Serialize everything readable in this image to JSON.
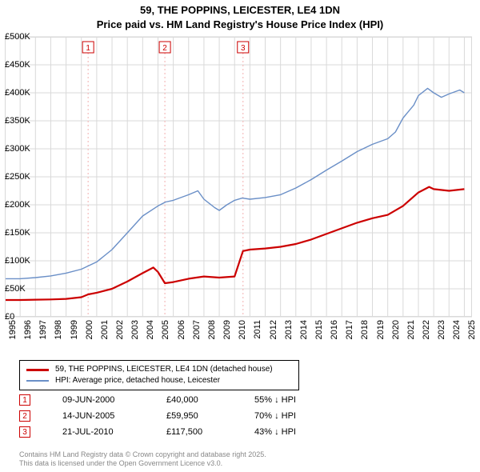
{
  "title": {
    "line1": "59, THE POPPINS, LEICESTER, LE4 1DN",
    "line2": "Price paid vs. HM Land Registry's House Price Index (HPI)"
  },
  "chart": {
    "type": "line",
    "background_color": "#ffffff",
    "grid_color": "#d9d9d9",
    "axis_color": "#000000",
    "x_years": [
      1995,
      1996,
      1997,
      1998,
      1999,
      2000,
      2001,
      2002,
      2003,
      2004,
      2005,
      2006,
      2007,
      2008,
      2009,
      2010,
      2011,
      2012,
      2013,
      2014,
      2015,
      2016,
      2017,
      2018,
      2019,
      2020,
      2021,
      2022,
      2023,
      2024,
      2025
    ],
    "x_domain": [
      1995,
      2025.5
    ],
    "y_domain": [
      0,
      500000
    ],
    "y_ticks": [
      0,
      50000,
      100000,
      150000,
      200000,
      250000,
      300000,
      350000,
      400000,
      450000,
      500000
    ],
    "y_tick_labels": [
      "£0",
      "£50K",
      "£100K",
      "£150K",
      "£200K",
      "£250K",
      "£300K",
      "£350K",
      "£400K",
      "£450K",
      "£500K"
    ],
    "y_label_fontsize": 11,
    "x_label_fontsize": 11,
    "series": [
      {
        "name": "HPI: Average price, detached house, Leicester",
        "color": "#6a8fc7",
        "line_width": 1.4,
        "points": [
          [
            1995,
            68000
          ],
          [
            1996,
            68000
          ],
          [
            1997,
            70000
          ],
          [
            1998,
            73000
          ],
          [
            1999,
            78000
          ],
          [
            2000,
            85000
          ],
          [
            2001,
            98000
          ],
          [
            2002,
            120000
          ],
          [
            2003,
            150000
          ],
          [
            2004,
            180000
          ],
          [
            2005,
            198000
          ],
          [
            2005.5,
            205000
          ],
          [
            2006,
            208000
          ],
          [
            2007,
            218000
          ],
          [
            2007.6,
            225000
          ],
          [
            2008,
            210000
          ],
          [
            2008.7,
            195000
          ],
          [
            2009,
            190000
          ],
          [
            2009.5,
            200000
          ],
          [
            2010,
            208000
          ],
          [
            2010.5,
            212000
          ],
          [
            2011,
            210000
          ],
          [
            2012,
            213000
          ],
          [
            2013,
            218000
          ],
          [
            2014,
            230000
          ],
          [
            2015,
            245000
          ],
          [
            2016,
            262000
          ],
          [
            2017,
            278000
          ],
          [
            2018,
            295000
          ],
          [
            2019,
            308000
          ],
          [
            2020,
            318000
          ],
          [
            2020.5,
            330000
          ],
          [
            2021,
            355000
          ],
          [
            2021.7,
            378000
          ],
          [
            2022,
            395000
          ],
          [
            2022.6,
            408000
          ],
          [
            2023,
            400000
          ],
          [
            2023.5,
            392000
          ],
          [
            2024,
            398000
          ],
          [
            2024.7,
            405000
          ],
          [
            2025,
            400000
          ]
        ]
      },
      {
        "name": "59, THE POPPINS, LEICESTER, LE4 1DN (detached house)",
        "color": "#cc0000",
        "line_width": 2.2,
        "points": [
          [
            1995,
            30000
          ],
          [
            1996,
            30000
          ],
          [
            1997,
            30500
          ],
          [
            1998,
            31000
          ],
          [
            1999,
            32000
          ],
          [
            2000,
            35000
          ],
          [
            2000.44,
            40000
          ],
          [
            2001,
            43000
          ],
          [
            2002,
            50000
          ],
          [
            2003,
            63000
          ],
          [
            2004,
            78000
          ],
          [
            2004.7,
            88000
          ],
          [
            2005,
            80000
          ],
          [
            2005.45,
            59950
          ],
          [
            2006,
            62000
          ],
          [
            2007,
            68000
          ],
          [
            2008,
            72000
          ],
          [
            2009,
            70000
          ],
          [
            2010,
            72000
          ],
          [
            2010.55,
            117500
          ],
          [
            2011,
            120000
          ],
          [
            2012,
            122000
          ],
          [
            2013,
            125000
          ],
          [
            2014,
            130000
          ],
          [
            2015,
            138000
          ],
          [
            2016,
            148000
          ],
          [
            2017,
            158000
          ],
          [
            2018,
            168000
          ],
          [
            2019,
            176000
          ],
          [
            2020,
            182000
          ],
          [
            2021,
            198000
          ],
          [
            2022,
            222000
          ],
          [
            2022.7,
            232000
          ],
          [
            2023,
            228000
          ],
          [
            2024,
            225000
          ],
          [
            2025,
            228000
          ]
        ]
      }
    ],
    "event_markers": [
      {
        "n": "1",
        "x": 2000.44
      },
      {
        "n": "2",
        "x": 2005.45
      },
      {
        "n": "3",
        "x": 2010.55
      }
    ],
    "event_marker_style": {
      "border_color": "#cc0000",
      "text_color": "#cc0000",
      "dash_color": "#f4bcbc",
      "dash_pattern": "2,3"
    }
  },
  "legend": {
    "items": [
      {
        "color": "#cc0000",
        "label": "59, THE POPPINS, LEICESTER, LE4 1DN (detached house)",
        "width": 3
      },
      {
        "color": "#6a8fc7",
        "label": "HPI: Average price, detached house, Leicester",
        "width": 2
      }
    ]
  },
  "events_table": {
    "rows": [
      {
        "n": "1",
        "date": "09-JUN-2000",
        "price": "£40,000",
        "pct": "55% ↓ HPI"
      },
      {
        "n": "2",
        "date": "14-JUN-2005",
        "price": "£59,950",
        "pct": "70% ↓ HPI"
      },
      {
        "n": "3",
        "date": "21-JUL-2010",
        "price": "£117,500",
        "pct": "43% ↓ HPI"
      }
    ]
  },
  "footer": {
    "line1": "Contains HM Land Registry data © Crown copyright and database right 2025.",
    "line2": "This data is licensed under the Open Government Licence v3.0."
  }
}
